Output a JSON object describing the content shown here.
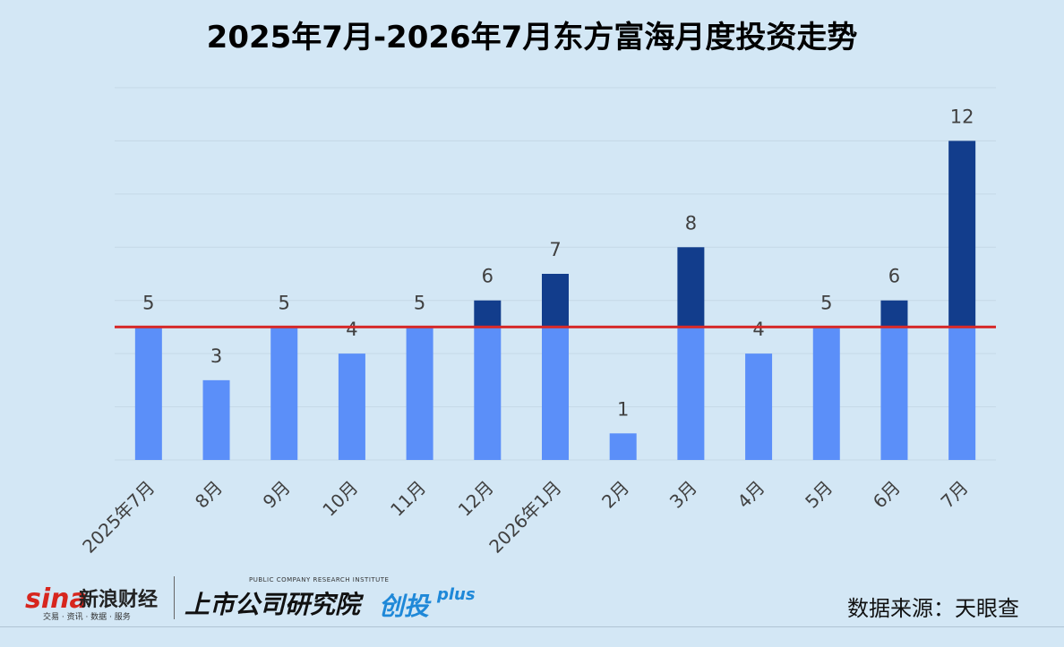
{
  "title": "2025年7月-2026年7月东方富海月度投资走势",
  "source": "数据来源：天眼查",
  "footer": {
    "sina_logo": "sina",
    "sina_name": "新浪财经",
    "sina_tag": "交易 · 资讯 · 数据 · 服务",
    "brand_main": "上市公司研究院",
    "brand_sub": "PUBLIC COMPANY RESEARCH INSTITUTE",
    "brand_accent": "创投",
    "brand_plus": "plus"
  },
  "colors": {
    "base_bar": "#5b8ff9",
    "excess_bar": "#123d8c",
    "reference_line": "#d62a2a",
    "background": "#d3e7f5",
    "gridline": "#c5d8e6"
  },
  "chart_data": {
    "type": "bar",
    "title": "2025年7月-2026年7月东方富海月度投资走势",
    "categories": [
      "2025年7月",
      "8月",
      "9月",
      "10月",
      "11月",
      "12月",
      "2026年1月",
      "2月",
      "3月",
      "4月",
      "5月",
      "6月",
      "7月"
    ],
    "values": [
      5,
      3,
      5,
      4,
      5,
      6,
      7,
      1,
      8,
      4,
      5,
      6,
      12
    ],
    "reference_line": 5,
    "ylim": [
      0,
      14
    ],
    "grid": true,
    "xlabel": "",
    "ylabel": ""
  }
}
